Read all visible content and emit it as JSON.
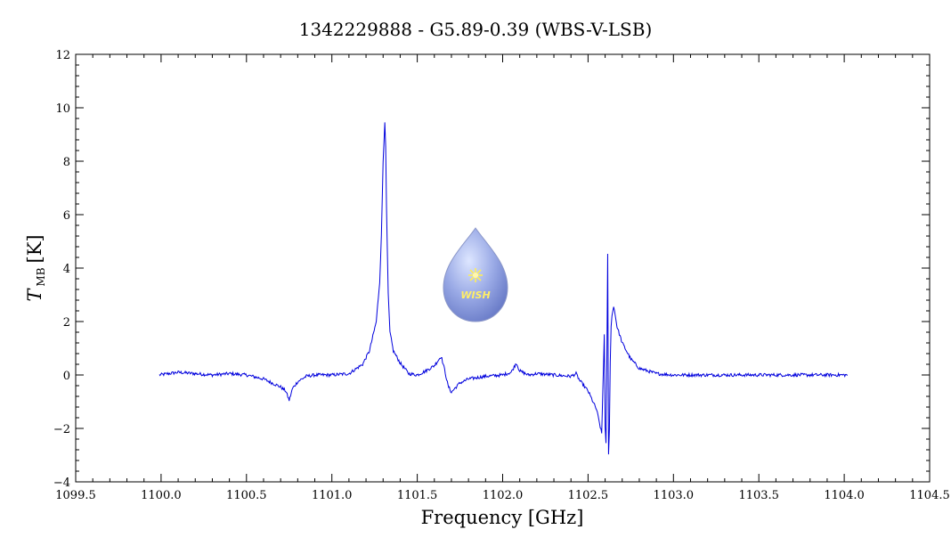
{
  "chart_data": {
    "type": "line",
    "title": "1342229888 - G5.89-0.39 (WBS-V-LSB)",
    "xlabel": "Frequency [GHz]",
    "ylabel": {
      "main": "T",
      "sub": "MB",
      "unit": "[K]"
    },
    "xlim": [
      1099.5,
      1104.5
    ],
    "ylim": [
      -4,
      12
    ],
    "xticks": [
      "1099.5",
      "1100.0",
      "1100.5",
      "1101.0",
      "1101.5",
      "1102.0",
      "1102.5",
      "1103.0",
      "1103.5",
      "1104.0",
      "1104.5"
    ],
    "yticks": [
      "−4",
      "−2",
      "0",
      "2",
      "4",
      "6",
      "8",
      "10",
      "12"
    ],
    "grid": false,
    "logo": {
      "text": "WISH"
    },
    "series": [
      {
        "color": "#0000dd",
        "x": [
          1099.99,
          1100.1,
          1100.2,
          1100.3,
          1100.4,
          1100.5,
          1100.6,
          1100.65,
          1100.7,
          1100.73,
          1100.75,
          1100.77,
          1100.8,
          1100.85,
          1100.9,
          1101.0,
          1101.1,
          1101.18,
          1101.22,
          1101.26,
          1101.28,
          1101.29,
          1101.3,
          1101.31,
          1101.315,
          1101.32,
          1101.33,
          1101.34,
          1101.36,
          1101.4,
          1101.45,
          1101.5,
          1101.55,
          1101.6,
          1101.64,
          1101.66,
          1101.68,
          1101.7,
          1101.72,
          1101.75,
          1101.8,
          1101.9,
          1102.0,
          1102.05,
          1102.08,
          1102.1,
          1102.15,
          1102.2,
          1102.3,
          1102.4,
          1102.43,
          1102.45,
          1102.5,
          1102.55,
          1102.58,
          1102.595,
          1102.6,
          1102.605,
          1102.61,
          1102.615,
          1102.62,
          1102.625,
          1102.63,
          1102.635,
          1102.64,
          1102.65,
          1102.66,
          1102.67,
          1102.7,
          1102.75,
          1102.8,
          1102.9,
          1103.0,
          1103.2,
          1103.4,
          1103.6,
          1103.8,
          1104.02
        ],
        "y": [
          0.0,
          0.1,
          0.05,
          0.0,
          0.05,
          0.0,
          -0.15,
          -0.3,
          -0.45,
          -0.6,
          -0.95,
          -0.5,
          -0.25,
          -0.05,
          0.0,
          0.0,
          0.05,
          0.4,
          0.9,
          2.0,
          3.5,
          5.2,
          8.0,
          9.5,
          8.5,
          6.2,
          3.0,
          1.6,
          0.9,
          0.45,
          0.05,
          0.0,
          0.15,
          0.35,
          0.7,
          0.2,
          -0.4,
          -0.65,
          -0.5,
          -0.3,
          -0.15,
          -0.05,
          0.0,
          0.1,
          0.45,
          0.15,
          0.0,
          0.05,
          0.0,
          -0.05,
          0.05,
          -0.2,
          -0.6,
          -1.3,
          -2.2,
          1.5,
          -2.0,
          -2.6,
          0.5,
          4.5,
          -3.0,
          -2.0,
          0.5,
          1.8,
          2.2,
          2.6,
          2.2,
          1.8,
          1.2,
          0.6,
          0.25,
          0.05,
          0.0,
          0.0,
          0.0,
          0.0,
          0.0,
          0.0
        ]
      }
    ]
  }
}
